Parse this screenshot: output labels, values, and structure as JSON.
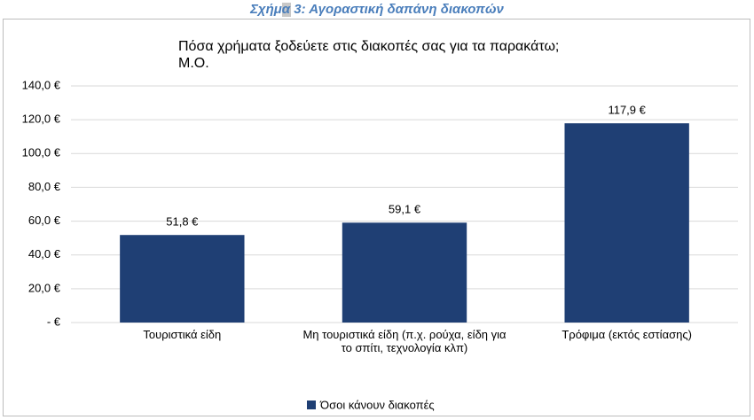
{
  "caption": {
    "prefix": "Σχήμα ",
    "number": "3",
    "text": ": Αγοραστική δαπάνη διακοπών"
  },
  "chart_data": {
    "type": "bar",
    "title": "Πόσα χρήματα ξοδεύετε στις διακοπές σας για τα παρακάτω;",
    "subtitle": "Μ.Ο.",
    "categories": [
      "Τουριστικά είδη",
      "Μη τουριστικά είδη (π.χ. ρούχα, είδη για το σπίτι, τεχνολογία κλπ)",
      "Τρόφιμα (εκτός εστίασης)"
    ],
    "series": [
      {
        "name": "Όσοι κάνουν διακοπές",
        "color": "#1f3f74",
        "values": [
          51.8,
          59.1,
          117.9
        ],
        "value_labels": [
          "51,8 €",
          "59,1 €",
          "117,9 €"
        ]
      }
    ],
    "ylim": [
      0,
      140
    ],
    "yticks": [
      {
        "value": 0,
        "label": "- €"
      },
      {
        "value": 20,
        "label": "20,0 €"
      },
      {
        "value": 40,
        "label": "40,0 €"
      },
      {
        "value": 60,
        "label": "60,0 €"
      },
      {
        "value": 80,
        "label": "80,0 €"
      },
      {
        "value": 100,
        "label": "100,0 €"
      },
      {
        "value": 120,
        "label": "120,0 €"
      },
      {
        "value": 140,
        "label": "140,0 €"
      }
    ],
    "grid": true,
    "legend": "bottom"
  }
}
